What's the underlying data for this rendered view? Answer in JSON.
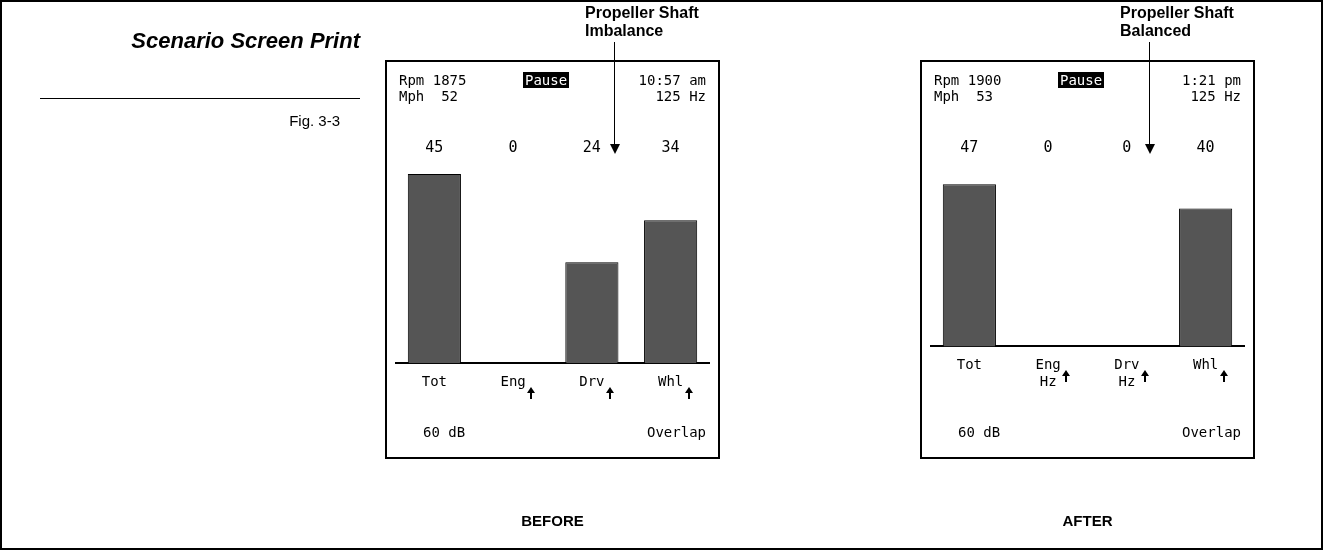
{
  "chart_data": [
    {
      "type": "other",
      "title": "Scenario Screen Print",
      "annotations": [
        "Fig. 3-3"
      ]
    },
    {
      "type": "bar",
      "title": "Propeller Shaft Imbalance",
      "xlabel": "BEFORE",
      "color": "#555555",
      "categories": [
        "Tot",
        "Eng",
        "Drv",
        "Whl"
      ],
      "values": [
        45,
        0,
        24,
        34
      ],
      "data_labels": true,
      "annotations": [
        "Rpm 1875",
        "Mph  52",
        "Pause",
        "10:57 am",
        "125 Hz",
        "60 dB",
        "Overlap"
      ]
    },
    {
      "type": "bar",
      "title": "Propeller Shaft Balanced",
      "xlabel": "AFTER",
      "color": "#555555",
      "categories": [
        "Tot",
        "Eng\nHz",
        "Drv\nHz",
        "Whl"
      ],
      "values": [
        47,
        0,
        0,
        40
      ],
      "data_labels": true,
      "annotations": [
        "Rpm 1900",
        "Mph  53",
        "Pause",
        "1:21 pm",
        "125 Hz",
        "60 dB",
        "Overlap"
      ]
    }
  ]
}
